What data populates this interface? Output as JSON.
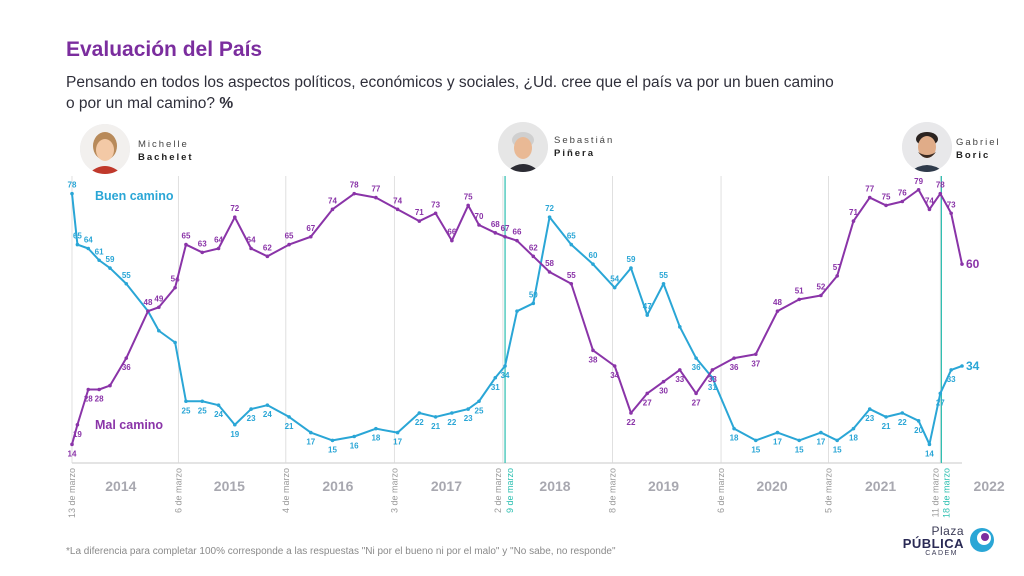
{
  "title": "Evaluación del País",
  "subtitle": "Pensando en todos los aspectos políticos, económicos y sociales, ¿Ud. cree que el país va por un buen camino o por un mal camino?",
  "subtitle_unit": "%",
  "presidents": [
    {
      "first": "Michelle",
      "last": "Bachelet"
    },
    {
      "first": "Sebastián",
      "last": "Piñera"
    },
    {
      "first": "Gabriel",
      "last": "Boric"
    }
  ],
  "footnote": "*La diferencia para completar 100% corresponde a las respuestas \"Ni por el bueno ni por el malo\" y \"No sabe, no responde\"",
  "logo": {
    "line1": "Plaza",
    "line2": "PÚBLICA",
    "line3": "CADEM"
  },
  "colors": {
    "buen": "#2aa6d6",
    "mal": "#8a34a8",
    "title": "#7b2d9e",
    "teal": "#2bbfb0"
  },
  "chart_data": {
    "type": "line",
    "x_unit": "years",
    "xlim": [
      2014.2,
      2022.4
    ],
    "ylim": [
      10,
      82
    ],
    "grid": false,
    "year_labels": [
      "2014",
      "2015",
      "2016",
      "2017",
      "2018",
      "2019",
      "2020",
      "2021",
      "2022"
    ],
    "date_markers": [
      {
        "label": "13 de marzo",
        "x": 2014.2
      },
      {
        "label": "6 de marzo",
        "x": 2015.18
      },
      {
        "label": "4 de marzo",
        "x": 2016.17
      },
      {
        "label": "3 de marzo",
        "x": 2017.17
      },
      {
        "label": "2 de marzo",
        "x": 2018.17
      },
      {
        "label": "9 de marzo",
        "x": 2018.19
      },
      {
        "label": "8 de marzo",
        "x": 2019.18
      },
      {
        "label": "6 de marzo",
        "x": 2020.18
      },
      {
        "label": "5 de marzo",
        "x": 2021.17
      },
      {
        "label": "11 de marzo",
        "x": 2022.2
      },
      {
        "label": "18 de marzo",
        "x": 2022.21
      }
    ],
    "series": [
      {
        "name": "Buen camino",
        "x": [
          2014.2,
          2014.25,
          2014.35,
          2014.45,
          2014.55,
          2014.7,
          2014.9,
          2015.0,
          2015.15,
          2015.25,
          2015.4,
          2015.55,
          2015.7,
          2015.85,
          2016.0,
          2016.2,
          2016.4,
          2016.6,
          2016.8,
          2017.0,
          2017.2,
          2017.4,
          2017.55,
          2017.7,
          2017.85,
          2017.95,
          2018.1,
          2018.19,
          2018.3,
          2018.45,
          2018.6,
          2018.8,
          2019.0,
          2019.2,
          2019.35,
          2019.5,
          2019.65,
          2019.8,
          2019.95,
          2020.1,
          2020.3,
          2020.5,
          2020.7,
          2020.9,
          2021.1,
          2021.25,
          2021.4,
          2021.55,
          2021.7,
          2021.85,
          2022.0,
          2022.1,
          2022.2,
          2022.3,
          2022.4
        ],
        "values": [
          78,
          65,
          64,
          61,
          59,
          55,
          48,
          43,
          40,
          25,
          25,
          24,
          19,
          23,
          24,
          21,
          17,
          15,
          16,
          18,
          17,
          22,
          21,
          22,
          23,
          25,
          31,
          34,
          48,
          50,
          72,
          65,
          60,
          54,
          59,
          47,
          55,
          44,
          36,
          31,
          18,
          15,
          17,
          15,
          17,
          15,
          18,
          23,
          21,
          22,
          20,
          14,
          27,
          33,
          34
        ],
        "point_labels": [
          {
            "i": 0,
            "v": 78
          },
          {
            "i": 1,
            "v": 65
          },
          {
            "i": 2,
            "v": 64
          },
          {
            "i": 3,
            "v": 61
          },
          {
            "i": 4,
            "v": 59
          },
          {
            "i": 5,
            "v": 55
          },
          {
            "i": 9,
            "v": 25
          },
          {
            "i": 10,
            "v": 25
          },
          {
            "i": 11,
            "v": 24
          },
          {
            "i": 12,
            "v": 19
          },
          {
            "i": 13,
            "v": 23
          },
          {
            "i": 14,
            "v": 24
          },
          {
            "i": 15,
            "v": 21
          },
          {
            "i": 16,
            "v": 17
          },
          {
            "i": 17,
            "v": 15
          },
          {
            "i": 18,
            "v": 16
          },
          {
            "i": 19,
            "v": 18
          },
          {
            "i": 20,
            "v": 17
          },
          {
            "i": 21,
            "v": 22
          },
          {
            "i": 22,
            "v": 21
          },
          {
            "i": 23,
            "v": 22
          },
          {
            "i": 24,
            "v": 23
          },
          {
            "i": 25,
            "v": 25
          },
          {
            "i": 26,
            "v": 31
          },
          {
            "i": 27,
            "v": 34
          },
          {
            "i": 29,
            "v": 50
          },
          {
            "i": 30,
            "v": 72
          },
          {
            "i": 31,
            "v": 65
          },
          {
            "i": 32,
            "v": 60
          },
          {
            "i": 33,
            "v": 54
          },
          {
            "i": 34,
            "v": 59
          },
          {
            "i": 35,
            "v": 47
          },
          {
            "i": 36,
            "v": 55
          },
          {
            "i": 38,
            "v": 36
          },
          {
            "i": 39,
            "v": 31
          },
          {
            "i": 40,
            "v": 18
          },
          {
            "i": 41,
            "v": 15
          },
          {
            "i": 42,
            "v": 17
          },
          {
            "i": 43,
            "v": 15
          },
          {
            "i": 44,
            "v": 17
          },
          {
            "i": 45,
            "v": 15
          },
          {
            "i": 46,
            "v": 18
          },
          {
            "i": 47,
            "v": 23
          },
          {
            "i": 48,
            "v": 21
          },
          {
            "i": 49,
            "v": 22
          },
          {
            "i": 50,
            "v": 20
          },
          {
            "i": 51,
            "v": 14
          },
          {
            "i": 52,
            "v": 27
          },
          {
            "i": 53,
            "v": 33
          },
          {
            "i": 54,
            "v": 34
          }
        ]
      },
      {
        "name": "Mal camino",
        "x": [
          2014.2,
          2014.25,
          2014.35,
          2014.45,
          2014.55,
          2014.7,
          2014.9,
          2015.0,
          2015.15,
          2015.25,
          2015.4,
          2015.55,
          2015.7,
          2015.85,
          2016.0,
          2016.2,
          2016.4,
          2016.6,
          2016.8,
          2017.0,
          2017.2,
          2017.4,
          2017.55,
          2017.7,
          2017.85,
          2017.95,
          2018.1,
          2018.19,
          2018.3,
          2018.45,
          2018.6,
          2018.8,
          2019.0,
          2019.2,
          2019.35,
          2019.5,
          2019.65,
          2019.8,
          2019.95,
          2020.1,
          2020.3,
          2020.5,
          2020.7,
          2020.9,
          2021.1,
          2021.25,
          2021.4,
          2021.55,
          2021.7,
          2021.85,
          2022.0,
          2022.1,
          2022.2,
          2022.3,
          2022.4
        ],
        "values": [
          14,
          19,
          28,
          28,
          29,
          36,
          48,
          49,
          54,
          65,
          63,
          64,
          72,
          64,
          62,
          65,
          67,
          74,
          78,
          77,
          74,
          71,
          73,
          66,
          75,
          70,
          68,
          67,
          66,
          62,
          58,
          55,
          38,
          34,
          22,
          27,
          30,
          33,
          27,
          33,
          36,
          37,
          48,
          51,
          52,
          57,
          71,
          77,
          75,
          76,
          79,
          74,
          78,
          73,
          60
        ],
        "point_labels": [
          {
            "i": 0,
            "v": 14
          },
          {
            "i": 1,
            "v": 19
          },
          {
            "i": 2,
            "v": 28
          },
          {
            "i": 3,
            "v": 28
          },
          {
            "i": 5,
            "v": 36
          },
          {
            "i": 6,
            "v": 48
          },
          {
            "i": 7,
            "v": 49
          },
          {
            "i": 8,
            "v": 54
          },
          {
            "i": 9,
            "v": 65
          },
          {
            "i": 10,
            "v": 63
          },
          {
            "i": 11,
            "v": 64
          },
          {
            "i": 12,
            "v": 72
          },
          {
            "i": 13,
            "v": 64
          },
          {
            "i": 14,
            "v": 62
          },
          {
            "i": 15,
            "v": 65
          },
          {
            "i": 16,
            "v": 67
          },
          {
            "i": 17,
            "v": 74
          },
          {
            "i": 18,
            "v": 78
          },
          {
            "i": 19,
            "v": 77
          },
          {
            "i": 20,
            "v": 74
          },
          {
            "i": 21,
            "v": 71
          },
          {
            "i": 22,
            "v": 73
          },
          {
            "i": 23,
            "v": 66
          },
          {
            "i": 24,
            "v": 75
          },
          {
            "i": 25,
            "v": 70
          },
          {
            "i": 26,
            "v": 68
          },
          {
            "i": 27,
            "v": 67
          },
          {
            "i": 28,
            "v": 66
          },
          {
            "i": 29,
            "v": 62
          },
          {
            "i": 30,
            "v": 58
          },
          {
            "i": 31,
            "v": 55
          },
          {
            "i": 32,
            "v": 38
          },
          {
            "i": 33,
            "v": 34
          },
          {
            "i": 34,
            "v": 22
          },
          {
            "i": 35,
            "v": 27
          },
          {
            "i": 36,
            "v": 30
          },
          {
            "i": 37,
            "v": 33
          },
          {
            "i": 38,
            "v": 27
          },
          {
            "i": 39,
            "v": 33
          },
          {
            "i": 40,
            "v": 36
          },
          {
            "i": 41,
            "v": 37
          },
          {
            "i": 42,
            "v": 48
          },
          {
            "i": 43,
            "v": 51
          },
          {
            "i": 44,
            "v": 52
          },
          {
            "i": 45,
            "v": 57
          },
          {
            "i": 46,
            "v": 71
          },
          {
            "i": 47,
            "v": 77
          },
          {
            "i": 48,
            "v": 75
          },
          {
            "i": 49,
            "v": 76
          },
          {
            "i": 50,
            "v": 79
          },
          {
            "i": 51,
            "v": 74
          },
          {
            "i": 52,
            "v": 78
          },
          {
            "i": 53,
            "v": 73
          },
          {
            "i": 54,
            "v": 60
          }
        ]
      }
    ]
  }
}
